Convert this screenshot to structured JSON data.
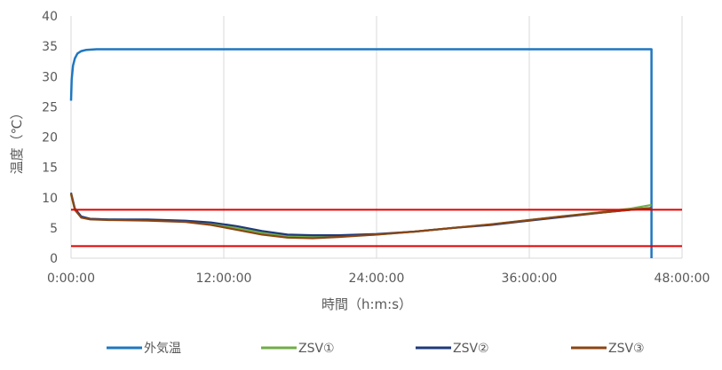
{
  "chart_data": {
    "type": "line",
    "title": "",
    "xlabel": "時間（h:m:s）",
    "ylabel": "温度（℃）",
    "xlim": [
      0,
      48
    ],
    "ylim": [
      0,
      40
    ],
    "x_ticks": [
      0,
      12,
      24,
      36,
      48
    ],
    "x_tick_labels": [
      "0:00:00",
      "12:00:00",
      "24:00:00",
      "36:00:00",
      "48:00:00"
    ],
    "y_ticks": [
      0,
      5,
      10,
      15,
      20,
      25,
      30,
      35,
      40
    ],
    "y_tick_labels": [
      "0",
      "5",
      "10",
      "15",
      "20",
      "25",
      "30",
      "35",
      "40"
    ],
    "grid": {
      "vertical": true,
      "horizontal": false
    },
    "legend_position": "bottom",
    "series": [
      {
        "name": "外気温",
        "color": "#1f77c0",
        "x": [
          0,
          0.05,
          0.15,
          0.3,
          0.5,
          0.8,
          1.2,
          2,
          3,
          5,
          10,
          20,
          30,
          40,
          45,
          45.6,
          45.6
        ],
        "y": [
          26,
          29.5,
          31.8,
          33,
          33.8,
          34.2,
          34.4,
          34.5,
          34.5,
          34.5,
          34.5,
          34.5,
          34.5,
          34.5,
          34.5,
          34.5,
          0
        ]
      },
      {
        "name": "ZSV①",
        "color": "#70ad47",
        "x": [
          0,
          0.3,
          0.8,
          1.5,
          3,
          6,
          9,
          11,
          13,
          15,
          17,
          19,
          21,
          24,
          27,
          30,
          33,
          36,
          39,
          42,
          44,
          45.6
        ],
        "y": [
          10.5,
          8,
          6.8,
          6.5,
          6.4,
          6.3,
          6.1,
          5.7,
          5,
          4.2,
          3.6,
          3.5,
          3.6,
          3.9,
          4.4,
          5,
          5.6,
          6.3,
          7,
          7.7,
          8.2,
          8.8
        ]
      },
      {
        "name": "ZSV②",
        "color": "#1f3a7a",
        "x": [
          0,
          0.3,
          0.8,
          1.5,
          3,
          6,
          9,
          11,
          13,
          15,
          17,
          19,
          21,
          24,
          27,
          30,
          33,
          36,
          39,
          42,
          44,
          45.6
        ],
        "y": [
          10.8,
          8.2,
          6.9,
          6.5,
          6.4,
          6.4,
          6.2,
          5.9,
          5.3,
          4.5,
          3.9,
          3.8,
          3.8,
          4,
          4.4,
          5,
          5.5,
          6.2,
          6.9,
          7.6,
          8,
          8.3
        ]
      },
      {
        "name": "ZSV③",
        "color": "#8b4513",
        "x": [
          0,
          0.3,
          0.8,
          1.5,
          3,
          6,
          9,
          11,
          13,
          15,
          17,
          19,
          21,
          24,
          27,
          30,
          33,
          36,
          39,
          42,
          44,
          45.6
        ],
        "y": [
          10.7,
          8,
          6.7,
          6.4,
          6.3,
          6.2,
          6,
          5.5,
          4.7,
          3.9,
          3.4,
          3.3,
          3.5,
          3.9,
          4.4,
          5,
          5.6,
          6.3,
          7,
          7.6,
          8,
          8.3
        ]
      }
    ],
    "reference_lines": [
      {
        "y": 8,
        "color": "#e00000"
      },
      {
        "y": 2,
        "color": "#e00000"
      }
    ]
  }
}
